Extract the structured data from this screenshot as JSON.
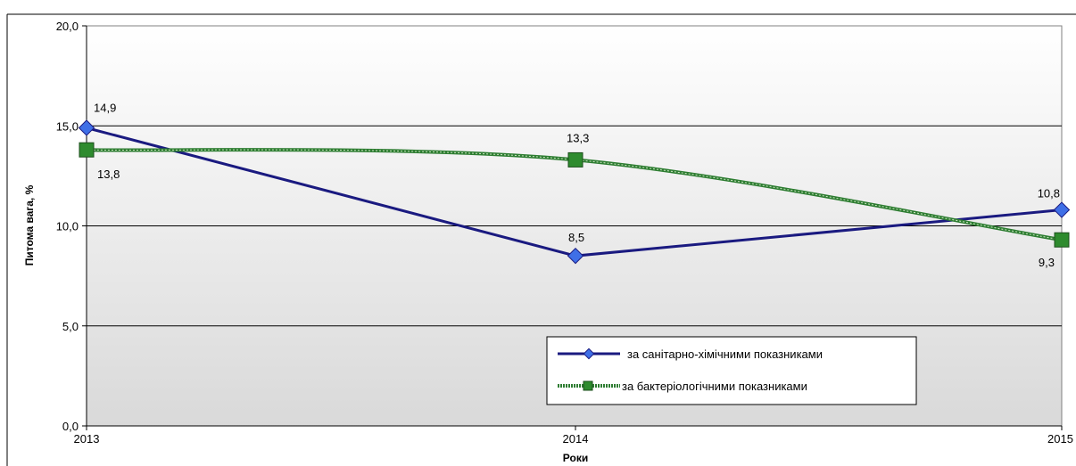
{
  "chart_data": {
    "type": "line",
    "title": "",
    "xlabel": "Роки",
    "ylabel": "Питома вага, %",
    "categories": [
      "2013",
      "2014",
      "2015"
    ],
    "ylim": [
      0,
      20
    ],
    "yticks": [
      "0,0",
      "5,0",
      "10,0",
      "15,0",
      "20,0"
    ],
    "grid": true,
    "legend_position": "bottom-right",
    "series": [
      {
        "name": "за санітарно-хімічними показниками",
        "values": [
          14.9,
          8.5,
          10.8
        ],
        "labels": [
          "14,9",
          "8,5",
          "10,8"
        ],
        "color": "#1a1a80",
        "marker": "diamond",
        "marker_color": "#3f6fe6"
      },
      {
        "name": "за бактеріологічними показниками",
        "values": [
          13.8,
          13.3,
          9.3
        ],
        "labels": [
          "13,8",
          "13,3",
          "9,3"
        ],
        "color": "#2e7d32",
        "marker": "square",
        "marker_color": "#2e8b2e",
        "smooth": true
      }
    ]
  }
}
